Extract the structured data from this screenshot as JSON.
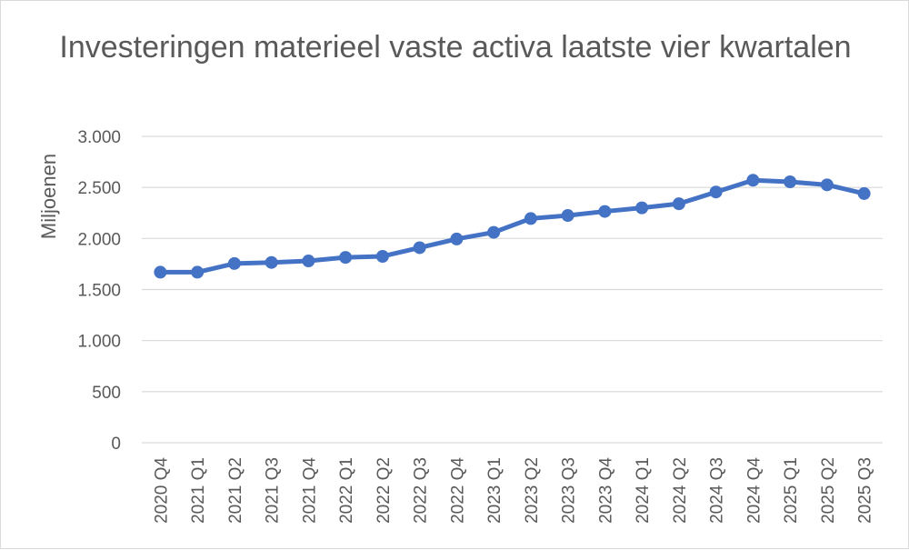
{
  "chart_data": {
    "type": "line",
    "title": "Investeringen materieel vaste activa laatste vier kwartalen",
    "xlabel": "",
    "ylabel": "Miljoenen",
    "ylim": [
      0,
      3000
    ],
    "yticks": [
      0,
      500,
      1000,
      1500,
      2000,
      2500,
      3000
    ],
    "ytick_labels": [
      "0",
      "500",
      "1.000",
      "1.500",
      "2.000",
      "2.500",
      "3.000"
    ],
    "grid": true,
    "legend": "none",
    "categories": [
      "2020 Q4",
      "2021 Q1",
      "2021 Q2",
      "2021 Q3",
      "2021 Q4",
      "2022 Q1",
      "2022 Q2",
      "2022 Q3",
      "2022 Q4",
      "2023 Q1",
      "2023 Q2",
      "2023 Q3",
      "2023 Q4",
      "2024 Q1",
      "2024 Q2",
      "2024 Q3",
      "2024 Q4",
      "2025 Q1",
      "2025 Q2",
      "2025 Q3"
    ],
    "series": [
      {
        "color": "#4472c4",
        "values": [
          1670,
          1670,
          1755,
          1765,
          1780,
          1815,
          1825,
          1910,
          1995,
          2060,
          2195,
          2225,
          2265,
          2300,
          2340,
          2455,
          2570,
          2555,
          2525,
          2440
        ]
      }
    ]
  }
}
